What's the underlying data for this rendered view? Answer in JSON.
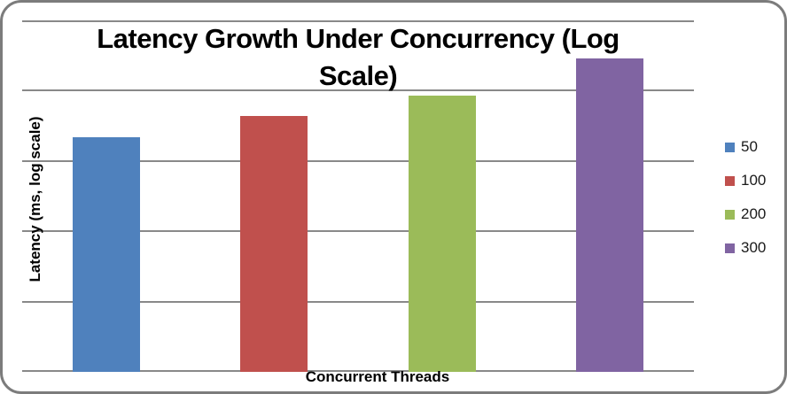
{
  "chart": {
    "title_display": "Latency Growth Under Concurrency (Log\nScale)",
    "y_axis_label": "Latency (ms, log scale)",
    "x_axis_label": "Concurrent Threads"
  },
  "chart_data": {
    "type": "bar",
    "title": "Latency Growth Under Concurrency (Log Scale)",
    "xlabel": "Concurrent Threads",
    "ylabel": "Latency (ms, log scale)",
    "y_scale": "log",
    "y_tick_labels": [],
    "x_tick_labels": [],
    "grid": "horizontal-only",
    "gridline_intervals": 5,
    "legend_position": "right",
    "categories": [
      "50",
      "100",
      "200",
      "300"
    ],
    "series": [
      {
        "name": "50",
        "color": "#4F81BD",
        "bar_height_fraction_of_plot": 0.667,
        "bar_height_gridline_units": 3.34
      },
      {
        "name": "100",
        "color": "#C0504D",
        "bar_height_fraction_of_plot": 0.728,
        "bar_height_gridline_units": 3.64
      },
      {
        "name": "200",
        "color": "#9BBB59",
        "bar_height_fraction_of_plot": 0.786,
        "bar_height_gridline_units": 3.93
      },
      {
        "name": "300",
        "color": "#8064A2",
        "bar_height_fraction_of_plot": 0.892,
        "bar_height_gridline_units": 4.46
      }
    ],
    "style_colors": {
      "gridline": "#898989",
      "frame_border": "#7c7c7c",
      "text": "#000000",
      "background": "#ffffff"
    }
  }
}
